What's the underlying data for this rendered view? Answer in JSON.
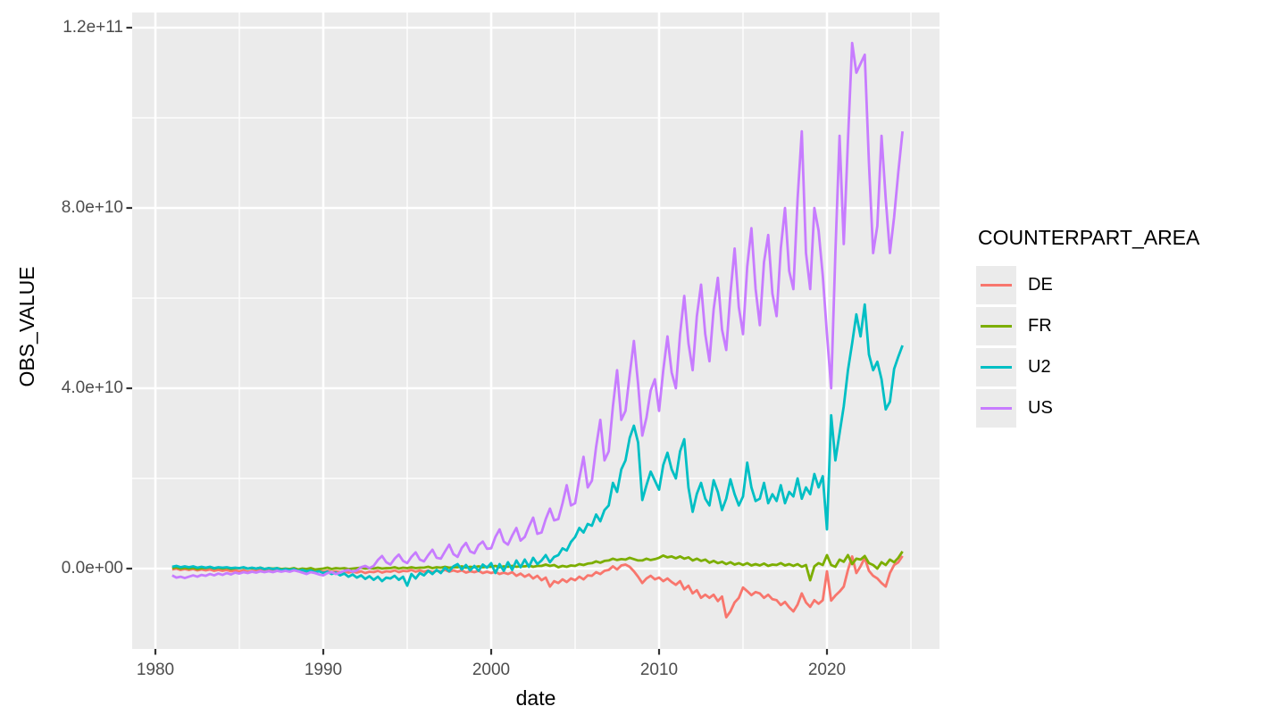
{
  "figure": {
    "x_axis_title": "date",
    "y_axis_title": "OBS_VALUE"
  },
  "chart_data": {
    "type": "line",
    "title": "",
    "xlabel": "date",
    "ylabel": "OBS_VALUE",
    "legend_title": "COUNTERPART_AREA",
    "legend_position": "right",
    "x_frequency": "quarterly",
    "x_start": 1981.0,
    "x_step": 0.25,
    "points_per_series": 175,
    "value_unit_multiplier": 1000000000,
    "xlim": [
      1978.8,
      2026.7
    ],
    "ylim": [
      -17800000000,
      123500000000
    ],
    "grid": true,
    "panel_bg": "#EBEBEB",
    "grid_color": "#FFFFFF",
    "tick_color": "#333333",
    "tick_label_color": "#4d4d4d",
    "axes": {
      "x_major": [
        1980,
        1990,
        2000,
        2010,
        2020
      ],
      "x_minor": [
        1985,
        1995,
        2005,
        2015,
        2025
      ],
      "x_labels": [
        "1980",
        "1990",
        "2000",
        "2010",
        "2020"
      ],
      "y_major_B": [
        0,
        40,
        80,
        120
      ],
      "y_minor_B": [
        20,
        60,
        100
      ],
      "y_labels": [
        "0.0e+00",
        "4.0e+10",
        "8.0e+10",
        "1.2e+11"
      ]
    },
    "series": [
      {
        "name": "DE",
        "color": "#F8766D",
        "values_B": [
          -0.2,
          0.0,
          -0.3,
          -0.1,
          -0.3,
          -0.1,
          -0.4,
          -0.2,
          -0.4,
          -0.2,
          -0.5,
          -0.3,
          -0.5,
          -0.3,
          -0.6,
          -0.4,
          -0.6,
          -0.4,
          -0.7,
          -0.5,
          -0.5,
          -0.3,
          -0.6,
          -0.4,
          -0.4,
          -0.2,
          -0.5,
          -0.3,
          -0.5,
          -0.3,
          -0.6,
          -0.4,
          -0.6,
          -0.4,
          -0.7,
          -0.5,
          -0.7,
          -0.5,
          -0.8,
          -0.6,
          -0.8,
          -0.6,
          -0.9,
          -0.7,
          -0.9,
          -0.6,
          -1.0,
          -0.7,
          -0.8,
          -0.5,
          -0.9,
          -0.6,
          -0.7,
          -0.4,
          -0.8,
          -0.5,
          -0.6,
          -0.3,
          -0.7,
          -0.4,
          -0.7,
          -0.4,
          -0.8,
          -0.5,
          -0.6,
          -0.3,
          -0.7,
          -0.4,
          -0.7,
          -0.4,
          -0.9,
          -0.6,
          -0.8,
          -0.5,
          -1.0,
          -0.7,
          -1.0,
          -0.7,
          -1.2,
          -0.9,
          -1.2,
          -0.8,
          -1.6,
          -1.1,
          -1.8,
          -1.3,
          -2.2,
          -1.6,
          -2.6,
          -2.0,
          -4.0,
          -2.8,
          -3.2,
          -2.4,
          -3.0,
          -2.2,
          -2.6,
          -1.8,
          -2.4,
          -1.5,
          -1.6,
          -0.8,
          -1.2,
          -0.5,
          -0.3,
          0.5,
          -0.2,
          0.7,
          0.9,
          0.4,
          -0.6,
          -1.8,
          -3.2,
          -2.2,
          -1.6,
          -2.4,
          -2.0,
          -2.8,
          -2.2,
          -3.0,
          -3.6,
          -2.8,
          -4.6,
          -3.8,
          -5.5,
          -4.8,
          -6.5,
          -5.8,
          -6.5,
          -5.8,
          -7.2,
          -6.2,
          -10.8,
          -9.5,
          -7.5,
          -6.5,
          -4.2,
          -5.0,
          -5.9,
          -5.2,
          -5.5,
          -6.5,
          -5.8,
          -6.8,
          -7.0,
          -8.1,
          -7.4,
          -8.6,
          -9.5,
          -8.0,
          -5.5,
          -7.5,
          -8.5,
          -7.0,
          -7.8,
          -7.0,
          -0.6,
          -7.1,
          -6.0,
          -5.1,
          -4.0,
          -0.3,
          2.7,
          -1.0,
          0.5,
          2.4,
          -0.5,
          -1.6,
          -2.2,
          -3.2,
          -4.0,
          -1.0,
          0.8,
          1.4,
          2.8
        ]
      },
      {
        "name": "FR",
        "color": "#7CAE00",
        "values_B": [
          0.1,
          0.3,
          0.0,
          0.2,
          0.0,
          0.2,
          -0.1,
          0.1,
          0.1,
          0.3,
          0.0,
          0.2,
          0.0,
          0.2,
          -0.1,
          0.1,
          0.1,
          0.2,
          0.0,
          0.1,
          0.0,
          0.2,
          -0.1,
          0.1,
          0.0,
          0.1,
          -0.1,
          0.0,
          -0.1,
          0.1,
          -0.2,
          0.0,
          -0.1,
          0.1,
          -0.2,
          -0.1,
          0.0,
          0.2,
          -0.1,
          0.1,
          0.0,
          0.1,
          -0.1,
          0.0,
          0.1,
          0.2,
          0.0,
          0.1,
          0.0,
          0.2,
          0.0,
          0.1,
          0.1,
          0.3,
          0.0,
          0.2,
          0.1,
          0.3,
          0.1,
          0.2,
          0.2,
          0.4,
          0.1,
          0.3,
          0.2,
          0.4,
          0.2,
          0.3,
          0.3,
          0.5,
          0.2,
          0.4,
          0.3,
          0.5,
          0.3,
          0.4,
          0.4,
          0.6,
          0.3,
          0.5,
          0.4,
          0.6,
          0.4,
          0.5,
          0.5,
          0.7,
          0.4,
          0.6,
          0.6,
          0.9,
          0.6,
          0.8,
          0.3,
          0.6,
          0.4,
          0.7,
          0.6,
          1.0,
          0.8,
          1.1,
          1.2,
          1.6,
          1.3,
          1.7,
          1.8,
          2.2,
          1.9,
          2.1,
          2.0,
          2.4,
          2.1,
          1.8,
          1.8,
          2.2,
          1.9,
          2.1,
          2.4,
          2.9,
          2.5,
          2.7,
          2.3,
          2.7,
          2.2,
          2.5,
          1.8,
          2.2,
          1.7,
          2.0,
          1.3,
          1.7,
          1.2,
          1.5,
          1.0,
          1.4,
          0.9,
          1.2,
          0.8,
          1.2,
          0.7,
          1.0,
          0.7,
          1.1,
          0.6,
          0.9,
          0.8,
          1.2,
          0.7,
          1.0,
          0.6,
          1.0,
          0.4,
          0.8,
          -2.6,
          0.5,
          1.2,
          0.8,
          3.0,
          0.8,
          0.4,
          2.0,
          1.5,
          3.0,
          1.0,
          2.2,
          2.0,
          2.8,
          1.2,
          0.8,
          0.0,
          1.4,
          0.8,
          2.0,
          1.4,
          2.4,
          3.8
        ]
      },
      {
        "name": "U2",
        "color": "#00BFC4",
        "values_B": [
          0.4,
          0.6,
          0.3,
          0.5,
          0.3,
          0.5,
          0.2,
          0.4,
          0.2,
          0.4,
          0.1,
          0.3,
          0.2,
          0.3,
          0.1,
          0.2,
          0.1,
          0.3,
          0.0,
          0.2,
          0.0,
          0.2,
          -0.1,
          0.1,
          -0.1,
          0.1,
          -0.3,
          -0.1,
          -0.3,
          -0.1,
          -0.5,
          -0.3,
          -0.6,
          -0.4,
          -0.8,
          -0.6,
          -1.0,
          -0.7,
          -1.2,
          -0.9,
          -1.5,
          -1.1,
          -1.8,
          -1.3,
          -2.0,
          -1.5,
          -2.3,
          -1.7,
          -2.5,
          -1.8,
          -2.8,
          -2.0,
          -2.2,
          -1.6,
          -2.5,
          -1.8,
          -3.8,
          -1.2,
          -2.2,
          -1.0,
          -1.5,
          -0.5,
          -1.2,
          -0.3,
          -1.0,
          0.2,
          -0.6,
          0.5,
          1.0,
          -0.2,
          0.8,
          -0.4,
          0.6,
          -0.5,
          0.9,
          0.2,
          1.2,
          -1.0,
          1.0,
          -0.5,
          1.4,
          -0.3,
          1.8,
          0.3,
          2.0,
          0.4,
          2.4,
          1.0,
          1.8,
          3.0,
          1.4,
          2.6,
          3.0,
          4.5,
          4.0,
          5.9,
          7.0,
          9.0,
          8.0,
          9.9,
          9.5,
          12.0,
          10.5,
          13.0,
          14.0,
          19.0,
          17.0,
          22.0,
          24.0,
          29.0,
          31.7,
          28.0,
          15.2,
          18.5,
          21.5,
          19.5,
          17.5,
          23.0,
          25.7,
          22.0,
          20.0,
          26.0,
          28.7,
          18.0,
          12.6,
          16.6,
          19.0,
          15.5,
          14.0,
          19.6,
          17.0,
          13.0,
          15.5,
          19.8,
          16.5,
          14.0,
          16.0,
          23.5,
          18.0,
          15.0,
          15.5,
          19.0,
          14.5,
          16.5,
          15.0,
          18.5,
          14.5,
          17.0,
          16.0,
          20.0,
          15.5,
          18.0,
          16.5,
          21.0,
          18.0,
          20.5,
          8.7,
          34.0,
          24.0,
          30.0,
          36.0,
          44.0,
          50.0,
          56.4,
          51.5,
          58.6,
          47.5,
          44.0,
          45.9,
          42.0,
          35.3,
          37.0,
          44.3,
          47.0,
          49.5
        ]
      },
      {
        "name": "US",
        "color": "#C77CFF",
        "values_B": [
          -1.5,
          -2.0,
          -1.8,
          -2.1,
          -1.8,
          -1.5,
          -1.8,
          -1.4,
          -1.6,
          -1.2,
          -1.5,
          -1.1,
          -1.4,
          -1.0,
          -1.3,
          -0.9,
          -1.1,
          -0.8,
          -1.0,
          -0.7,
          -0.9,
          -0.6,
          -0.8,
          -0.6,
          -0.8,
          -0.5,
          -0.7,
          -0.5,
          -0.7,
          -0.4,
          -0.6,
          -0.9,
          -1.2,
          -0.8,
          -1.0,
          -1.3,
          -1.5,
          -1.0,
          -0.8,
          -1.2,
          -0.9,
          -0.5,
          -0.3,
          -0.7,
          -0.4,
          0.3,
          0.6,
          0.1,
          0.6,
          1.9,
          2.8,
          1.4,
          0.9,
          2.2,
          3.1,
          1.7,
          1.2,
          2.6,
          3.6,
          2.0,
          1.6,
          3.0,
          4.2,
          2.4,
          2.2,
          3.8,
          5.3,
          3.2,
          2.6,
          4.6,
          5.7,
          3.8,
          3.4,
          5.2,
          6.0,
          4.4,
          4.5,
          7.0,
          8.7,
          6.0,
          5.3,
          7.3,
          9.0,
          6.2,
          7.0,
          9.3,
          11.3,
          7.7,
          8.0,
          11.0,
          13.3,
          10.7,
          11.0,
          14.5,
          18.5,
          14.0,
          14.5,
          20.0,
          24.8,
          18.0,
          19.5,
          27.0,
          33.0,
          24.0,
          26.0,
          36.0,
          44.0,
          33.0,
          35.0,
          43.0,
          50.5,
          41.0,
          29.5,
          33.5,
          39.5,
          42.0,
          35.0,
          44.0,
          51.5,
          43.5,
          40.0,
          52.0,
          60.5,
          50.0,
          44.0,
          56.0,
          63.0,
          52.0,
          46.0,
          57.5,
          64.5,
          53.0,
          48.5,
          61.0,
          71.0,
          58.0,
          52.0,
          67.0,
          75.5,
          62.0,
          54.0,
          68.0,
          74.0,
          61.0,
          56.0,
          71.0,
          80.0,
          66.0,
          62.0,
          82.0,
          97.0,
          70.0,
          62.0,
          80.0,
          75.0,
          65.0,
          52.0,
          40.0,
          70.0,
          96.0,
          72.0,
          95.0,
          116.6,
          110.0,
          112.0,
          114.0,
          90.0,
          70.0,
          76.0,
          96.0,
          82.0,
          70.0,
          78.0,
          88.0,
          97.0
        ]
      }
    ]
  }
}
